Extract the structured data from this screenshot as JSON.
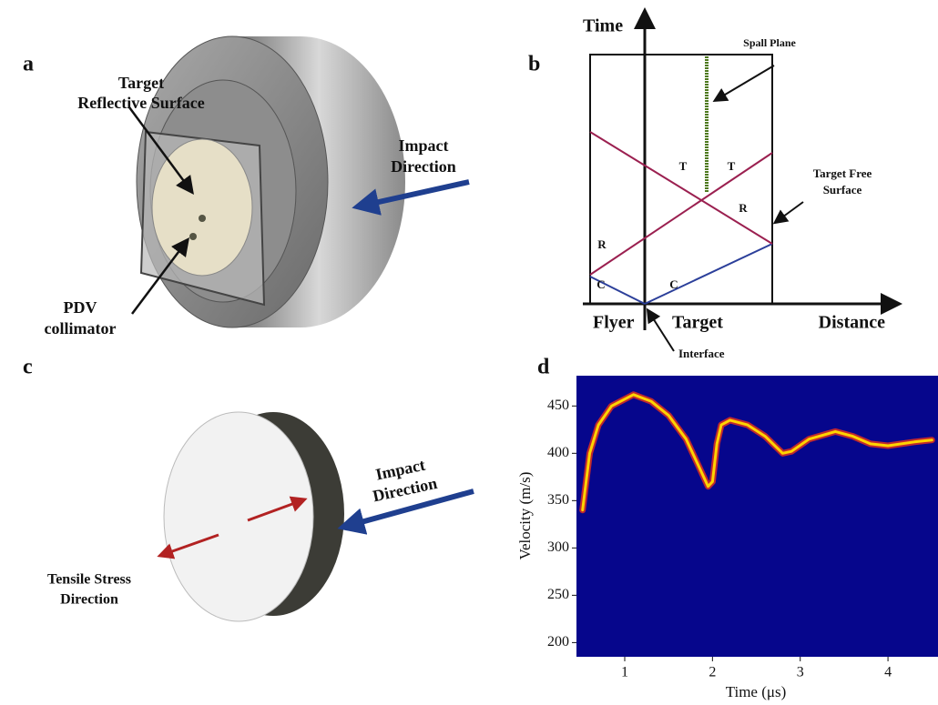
{
  "panels": {
    "a": {
      "label": "a",
      "target_label": [
        "Target",
        "Reflective Surface"
      ],
      "impact_label": [
        "Impact",
        "Direction"
      ],
      "pdv_label": [
        "PDV",
        "collimator"
      ]
    },
    "b": {
      "label": "b",
      "axis_y": "Time",
      "axis_x": "Distance",
      "spall_plane": "Spall Plane",
      "free_surface": [
        "Target Free",
        "Surface"
      ],
      "regions": [
        "Flyer",
        "Target"
      ],
      "interface": "Interface",
      "wave_labels": [
        "T",
        "T",
        "R",
        "R",
        "C",
        "C"
      ]
    },
    "c": {
      "label": "c",
      "impact_label": [
        "Impact",
        "Direction"
      ],
      "stress_label": [
        "Tensile Stress",
        "Direction"
      ]
    },
    "d": {
      "label": "d"
    }
  },
  "chart_data": {
    "type": "line",
    "x_label": "Time (μs)",
    "y_label": "Velocity (m/s)",
    "x": [
      0.52,
      0.6,
      0.7,
      0.85,
      1.1,
      1.3,
      1.5,
      1.7,
      1.85,
      1.95,
      2.0,
      2.05,
      2.1,
      2.2,
      2.4,
      2.6,
      2.8,
      2.9,
      3.1,
      3.4,
      3.6,
      3.8,
      4.0,
      4.3,
      4.5
    ],
    "series": [
      {
        "color": "#ffd400",
        "values": [
          340,
          400,
          430,
          450,
          462,
          455,
          440,
          415,
          385,
          365,
          370,
          410,
          430,
          435,
          430,
          418,
          400,
          402,
          415,
          423,
          418,
          410,
          408,
          412,
          414
        ]
      }
    ],
    "xlim": [
      0.45,
      4.57
    ],
    "ylim": [
      185,
      482
    ],
    "xticks": [
      1,
      2,
      3,
      4
    ],
    "yticks": [
      200,
      250,
      300,
      350,
      400,
      450
    ]
  }
}
